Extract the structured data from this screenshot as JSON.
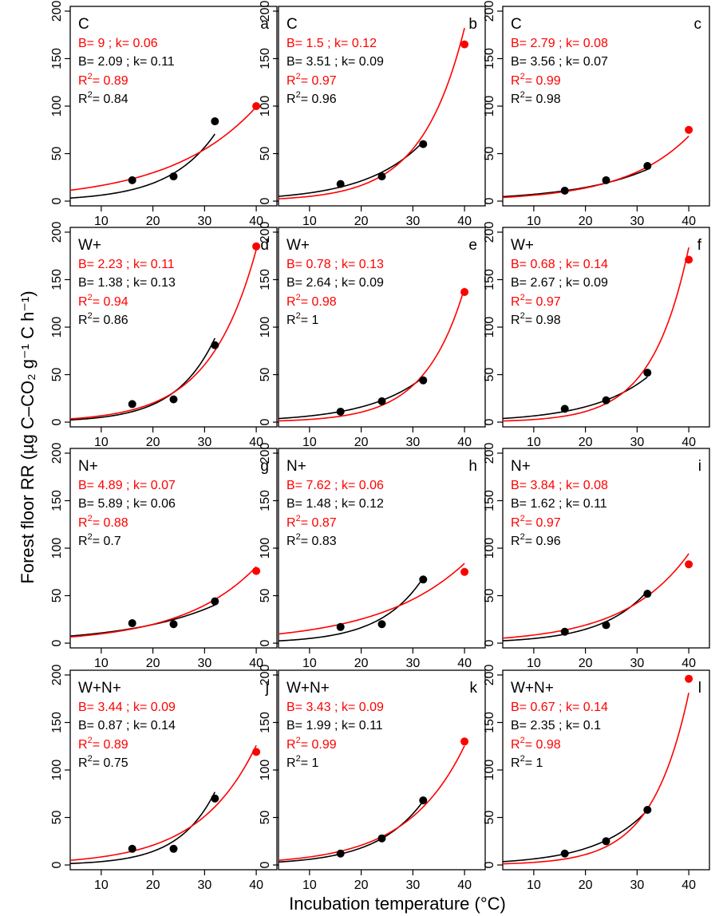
{
  "figure": {
    "ylabel": "Forest floor RR (µg C–CO₂ g⁻¹ C h⁻¹)",
    "xlabel": "Incubation temperature (°C)"
  },
  "colors": {
    "fit_all": "#ff0000",
    "fit_obs": "#000000",
    "axis": "#000000"
  },
  "chart_data": {
    "type": "scatter",
    "grid": false,
    "xlim": [
      4,
      44
    ],
    "ylim": [
      -5,
      205
    ],
    "x_ticks": [
      10,
      20,
      30,
      40
    ],
    "y_ticks": [
      0,
      50,
      100,
      150,
      200
    ],
    "panels": [
      {
        "id": "a",
        "label": "C",
        "red_fit": {
          "B": "9",
          "k": "0.06",
          "r2": "0.89"
        },
        "black_fit": {
          "B": "2.09",
          "k": "0.11",
          "r2": "0.84"
        },
        "black_points": [
          [
            16,
            22
          ],
          [
            24,
            26
          ],
          [
            32,
            84
          ]
        ],
        "red_point": [
          40,
          100
        ]
      },
      {
        "id": "b",
        "label": "C",
        "red_fit": {
          "B": "1.5",
          "k": "0.12",
          "r2": "0.97"
        },
        "black_fit": {
          "B": "3.51",
          "k": "0.09",
          "r2": "0.96"
        },
        "black_points": [
          [
            16,
            18
          ],
          [
            24,
            26
          ],
          [
            32,
            60
          ]
        ],
        "red_point": [
          40,
          165
        ]
      },
      {
        "id": "c",
        "label": "C",
        "red_fit": {
          "B": "2.79",
          "k": "0.08",
          "r2": "0.99"
        },
        "black_fit": {
          "B": "3.56",
          "k": "0.07",
          "r2": "0.98"
        },
        "black_points": [
          [
            16,
            11
          ],
          [
            24,
            22
          ],
          [
            32,
            37
          ]
        ],
        "red_point": [
          40,
          75
        ]
      },
      {
        "id": "d",
        "label": "W+",
        "red_fit": {
          "B": "2.23",
          "k": "0.11",
          "r2": "0.94"
        },
        "black_fit": {
          "B": "1.38",
          "k": "0.13",
          "r2": "0.86"
        },
        "black_points": [
          [
            16,
            19
          ],
          [
            24,
            24
          ],
          [
            32,
            81
          ]
        ],
        "red_point": [
          40,
          185
        ]
      },
      {
        "id": "e",
        "label": "W+",
        "red_fit": {
          "B": "0.78",
          "k": "0.13",
          "r2": "0.98"
        },
        "black_fit": {
          "B": "2.64",
          "k": "0.09",
          "r2": "1"
        },
        "black_points": [
          [
            16,
            11
          ],
          [
            24,
            22
          ],
          [
            32,
            44
          ]
        ],
        "red_point": [
          40,
          137
        ]
      },
      {
        "id": "f",
        "label": "W+",
        "red_fit": {
          "B": "0.68",
          "k": "0.14",
          "r2": "0.97"
        },
        "black_fit": {
          "B": "2.67",
          "k": "0.09",
          "r2": "0.98"
        },
        "black_points": [
          [
            16,
            14
          ],
          [
            24,
            23
          ],
          [
            32,
            52
          ]
        ],
        "red_point": [
          40,
          171
        ]
      },
      {
        "id": "g",
        "label": "N+",
        "red_fit": {
          "B": "4.89",
          "k": "0.07",
          "r2": "0.88"
        },
        "black_fit": {
          "B": "5.89",
          "k": "0.06",
          "r2": "0.7"
        },
        "black_points": [
          [
            16,
            21
          ],
          [
            24,
            20
          ],
          [
            32,
            44
          ]
        ],
        "red_point": [
          40,
          76
        ]
      },
      {
        "id": "h",
        "label": "N+",
        "red_fit": {
          "B": "7.62",
          "k": "0.06",
          "r2": "0.87"
        },
        "black_fit": {
          "B": "1.48",
          "k": "0.12",
          "r2": "0.83"
        },
        "black_points": [
          [
            16,
            17
          ],
          [
            24,
            20
          ],
          [
            32,
            67
          ]
        ],
        "red_point": [
          40,
          75
        ]
      },
      {
        "id": "i",
        "label": "N+",
        "red_fit": {
          "B": "3.84",
          "k": "0.08",
          "r2": "0.97"
        },
        "black_fit": {
          "B": "1.62",
          "k": "0.11",
          "r2": "0.96"
        },
        "black_points": [
          [
            16,
            12
          ],
          [
            24,
            19
          ],
          [
            32,
            52
          ]
        ],
        "red_point": [
          40,
          83
        ]
      },
      {
        "id": "j",
        "label": "W+N+",
        "red_fit": {
          "B": "3.44",
          "k": "0.09",
          "r2": "0.89"
        },
        "black_fit": {
          "B": "0.87",
          "k": "0.14",
          "r2": "0.75"
        },
        "black_points": [
          [
            16,
            17
          ],
          [
            24,
            17
          ],
          [
            32,
            70
          ]
        ],
        "red_point": [
          40,
          119
        ]
      },
      {
        "id": "k",
        "label": "W+N+",
        "red_fit": {
          "B": "3.43",
          "k": "0.09",
          "r2": "0.99"
        },
        "black_fit": {
          "B": "1.99",
          "k": "0.11",
          "r2": "1"
        },
        "black_points": [
          [
            16,
            12
          ],
          [
            24,
            28
          ],
          [
            32,
            68
          ]
        ],
        "red_point": [
          40,
          130
        ]
      },
      {
        "id": "l",
        "label": "W+N+",
        "red_fit": {
          "B": "0.67",
          "k": "0.14",
          "r2": "0.98"
        },
        "black_fit": {
          "B": "2.35",
          "k": "0.1",
          "r2": "1"
        },
        "black_points": [
          [
            16,
            12
          ],
          [
            24,
            25
          ],
          [
            32,
            58
          ]
        ],
        "red_point": [
          40,
          196
        ]
      }
    ]
  }
}
